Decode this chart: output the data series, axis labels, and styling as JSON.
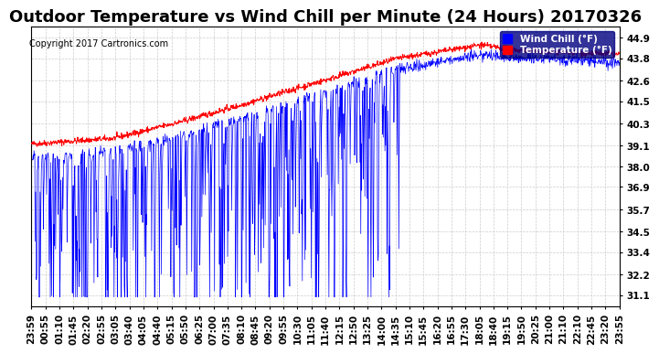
{
  "title": "Outdoor Temperature vs Wind Chill per Minute (24 Hours) 20170326",
  "copyright_text": "Copyright 2017 Cartronics.com",
  "legend_wind_chill": "Wind Chill (°F)",
  "legend_temperature": "Temperature (°F)",
  "yticks": [
    31.1,
    32.2,
    33.4,
    34.5,
    35.7,
    36.9,
    38.0,
    39.1,
    40.3,
    41.5,
    42.6,
    43.8,
    44.9
  ],
  "ylim_min": 30.5,
  "ylim_max": 45.5,
  "background_color": "#ffffff",
  "plot_bg_color": "#ffffff",
  "temp_color": "#ff0000",
  "wind_chill_color": "#0000ff",
  "grid_color": "#cccccc",
  "title_fontsize": 13,
  "tick_fontsize": 7.5,
  "num_points": 1440,
  "xtick_labels": [
    "23:59",
    "00:55",
    "01:10",
    "01:45",
    "02:20",
    "02:55",
    "03:05",
    "03:40",
    "04:05",
    "04:40",
    "05:15",
    "05:50",
    "06:25",
    "07:00",
    "07:35",
    "08:10",
    "08:45",
    "09:20",
    "09:55",
    "10:30",
    "11:05",
    "11:40",
    "12:15",
    "12:50",
    "13:25",
    "14:00",
    "14:35",
    "15:10",
    "15:45",
    "16:20",
    "16:55",
    "17:30",
    "18:05",
    "18:40",
    "19:15",
    "19:50",
    "20:25",
    "21:00",
    "21:10",
    "22:10",
    "22:45",
    "23:20",
    "23:55"
  ]
}
